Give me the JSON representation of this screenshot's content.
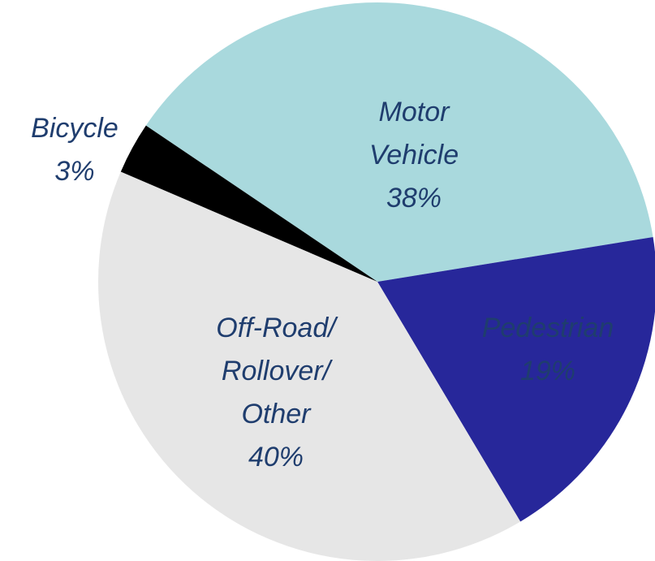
{
  "chart_data": {
    "type": "pie",
    "categories": [
      "Motor Vehicle",
      "Pedestrian",
      "Off-Road/ Rollover/ Other",
      "Bicycle"
    ],
    "values": [
      38,
      19,
      40,
      3
    ],
    "value_labels": [
      "38%",
      "19%",
      "40%",
      "3%"
    ],
    "colors": [
      "#a9d9dd",
      "#27279a",
      "#e6e6e6",
      "#000000"
    ]
  }
}
